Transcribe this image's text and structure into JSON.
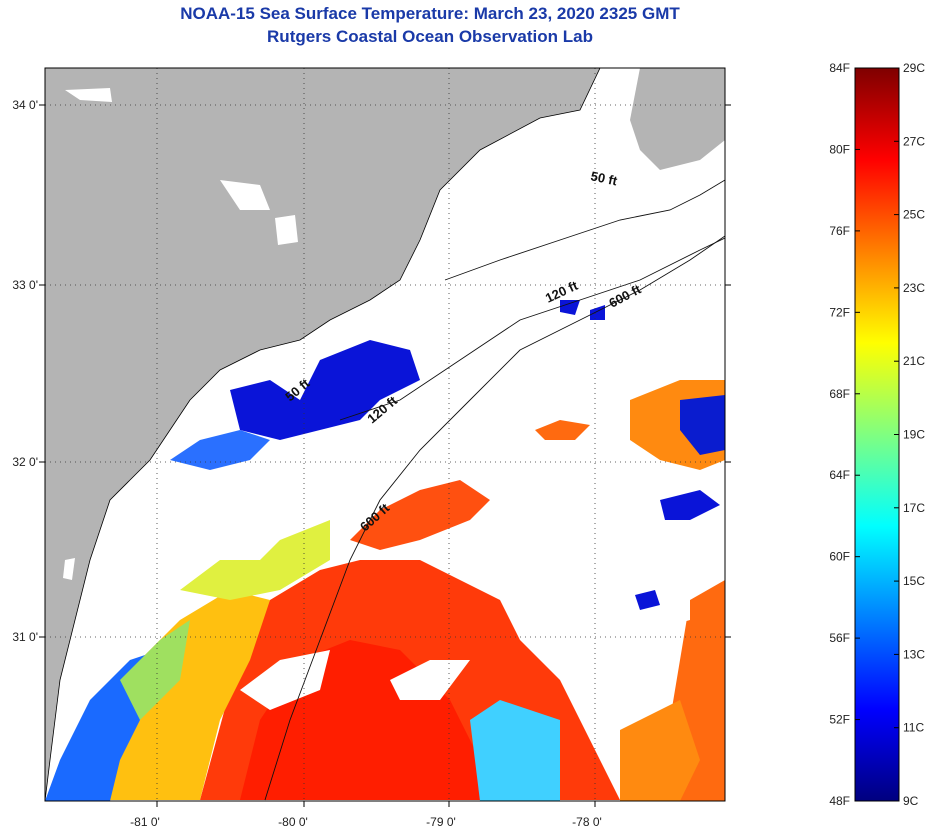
{
  "title": {
    "line1": "NOAA-15 Sea Surface Temperature:  March 23, 2020 2325 GMT",
    "line2": "Rutgers Coastal Ocean Observation Lab"
  },
  "map": {
    "lat_labels": [
      "34 0'",
      "33 0'",
      "32 0'",
      "31 0'"
    ],
    "lon_labels": [
      "-81 0'",
      "-80 0'",
      "-79 0'",
      "-78 0'"
    ],
    "land_color": "#b4b4b4",
    "no_data_color": "#ffffff",
    "contour_labels": [
      "50 ft",
      "120 ft",
      "600 ft",
      "50 ft",
      "120 ft",
      "600 ft"
    ]
  },
  "colorbar": {
    "fahrenheit": [
      "84F",
      "80F",
      "76F",
      "72F",
      "68F",
      "64F",
      "60F",
      "56F",
      "52F",
      "48F"
    ],
    "celsius": [
      "29C",
      "27C",
      "25C",
      "23C",
      "21C",
      "19C",
      "17C",
      "15C",
      "13C",
      "11C",
      "9C"
    ],
    "gradient_colors": [
      "#00007f",
      "#0000ff",
      "#0080ff",
      "#00ffff",
      "#80ff80",
      "#ffff00",
      "#ff8000",
      "#ff0000",
      "#7f0000"
    ]
  }
}
